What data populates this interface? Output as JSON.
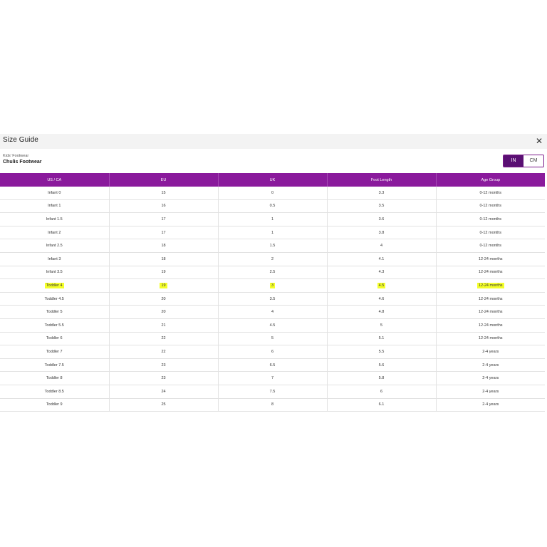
{
  "modal": {
    "title": "Size Guide",
    "close_icon": "close-icon",
    "close_glyph": "✕"
  },
  "product": {
    "category": "Kids' Footwear",
    "name": "Chulis Footwear"
  },
  "unit_toggle": {
    "options": [
      "IN",
      "CM"
    ],
    "selected": "IN"
  },
  "colors": {
    "header_purple": "#8a1a9c",
    "toggle_active": "#5a0f73",
    "highlight": "#f4ff2a"
  },
  "table": {
    "columns": [
      "US / CA",
      "EU",
      "UK",
      "Foot Length",
      "Age Group"
    ],
    "highlighted_row_index": 7,
    "rows": [
      [
        "Infant 0",
        "15",
        "0",
        "3.3",
        "0-12 months"
      ],
      [
        "Infant 1",
        "16",
        "0.5",
        "3.5",
        "0-12 months"
      ],
      [
        "Infant 1.5",
        "17",
        "1",
        "3.6",
        "0-12 months"
      ],
      [
        "Infant 2",
        "17",
        "1",
        "3.8",
        "0-12 months"
      ],
      [
        "Infant 2.5",
        "18",
        "1.5",
        "4",
        "0-12 months"
      ],
      [
        "Infant 3",
        "18",
        "2",
        "4.1",
        "12-24 months"
      ],
      [
        "Infant 3.5",
        "19",
        "2.5",
        "4.3",
        "12-24 months"
      ],
      [
        "Toddler 4",
        "19",
        "3",
        "4.5",
        "12-24 months"
      ],
      [
        "Toddler 4.5",
        "20",
        "3.5",
        "4.6",
        "12-24 months"
      ],
      [
        "Toddler 5",
        "20",
        "4",
        "4.8",
        "12-24 months"
      ],
      [
        "Toddler 5.5",
        "21",
        "4.5",
        "5",
        "12-24 months"
      ],
      [
        "Toddler 6",
        "22",
        "5",
        "5.1",
        "12-24 months"
      ],
      [
        "Toddler 7",
        "22",
        "6",
        "5.5",
        "2-4 years"
      ],
      [
        "Toddler 7.5",
        "23",
        "6.5",
        "5.6",
        "2-4 years"
      ],
      [
        "Toddler 8",
        "23",
        "7",
        "5.8",
        "2-4 years"
      ],
      [
        "Toddler 8.5",
        "24",
        "7.5",
        "6",
        "2-4 years"
      ],
      [
        "Toddler 9",
        "25",
        "8",
        "6.1",
        "2-4 years"
      ]
    ]
  }
}
